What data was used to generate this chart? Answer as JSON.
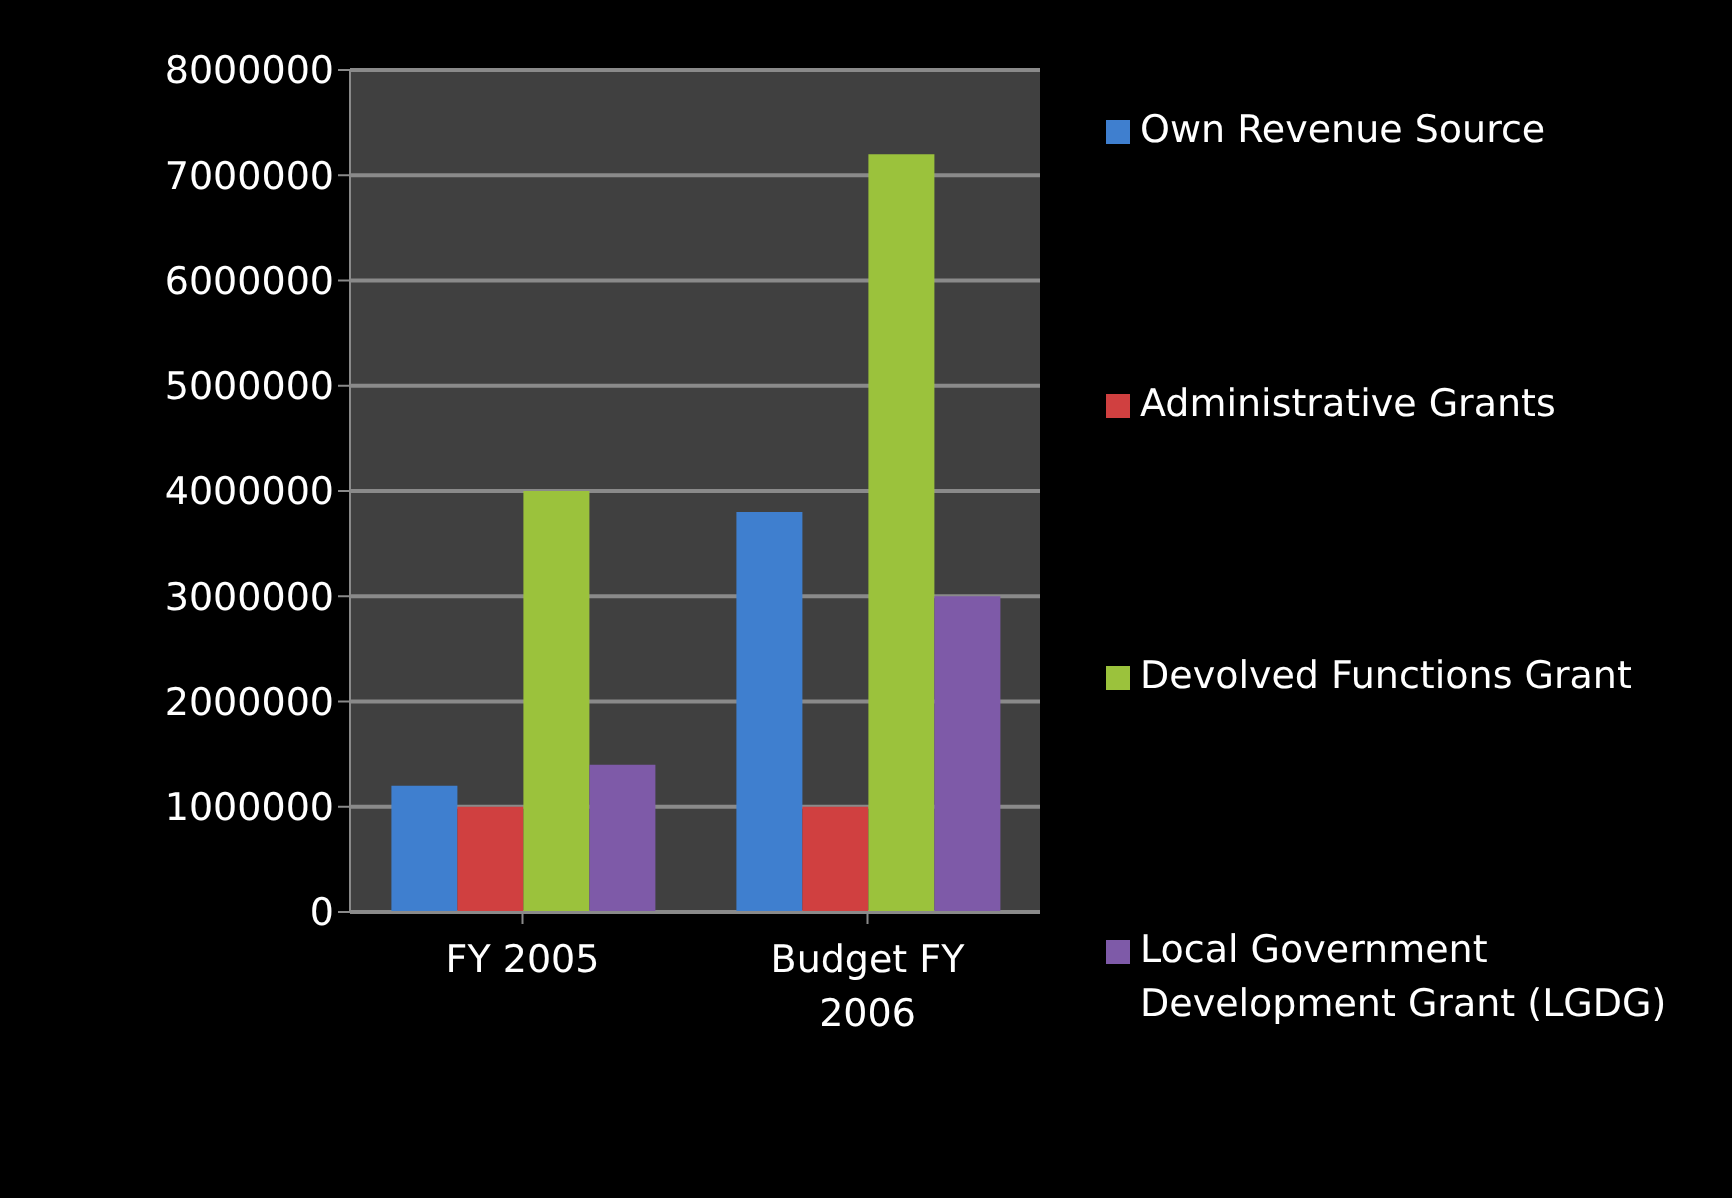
{
  "chart_data": {
    "type": "bar",
    "categories": [
      "FY 2005",
      "Budget FY 2006"
    ],
    "series": [
      {
        "name": "Own Revenue Source",
        "color": "#3f7fcf",
        "values": [
          1200000,
          3800000
        ]
      },
      {
        "name": "Administrative Grants",
        "color": "#d04040",
        "values": [
          1000000,
          1000000
        ]
      },
      {
        "name": "Devolved Functions Grant",
        "color": "#9bc23c",
        "values": [
          4000000,
          7200000
        ]
      },
      {
        "name": "Local Government Development Grant (LGDG)",
        "color": "#7e5aa8",
        "values": [
          1400000,
          3000000
        ]
      }
    ],
    "ylim": [
      0,
      8000000
    ],
    "yticks": [
      0,
      1000000,
      2000000,
      3000000,
      4000000,
      5000000,
      6000000,
      7000000,
      8000000
    ],
    "grid": "y",
    "legend": "right"
  }
}
